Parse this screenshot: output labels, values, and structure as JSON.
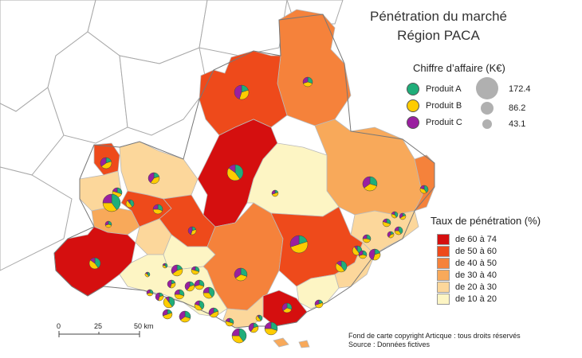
{
  "title": {
    "line1": "Pénétration du marché",
    "line2": "Région PACA"
  },
  "ca_legend": {
    "title": "Chiffre d’affaire (K€)",
    "products": [
      {
        "label": "Produit A",
        "color": "#1fae7a"
      },
      {
        "label": "Produit B",
        "color": "#ffcc00"
      },
      {
        "label": "Produit C",
        "color": "#9a1fa0"
      }
    ],
    "sizes": [
      "172.4",
      "86.2",
      "43.1"
    ]
  },
  "rate_legend": {
    "title": "Taux de pénétration (%)",
    "classes": [
      {
        "label": "de 60 à 74",
        "color": "#d50f0f"
      },
      {
        "label": "de 50 à 60",
        "color": "#ee4a1b"
      },
      {
        "label": "de 40 à 50",
        "color": "#f5823b"
      },
      {
        "label": "de 30 à 40",
        "color": "#f8a95a"
      },
      {
        "label": "de 20 à 30",
        "color": "#fcd79b"
      },
      {
        "label": "de 10 à 20",
        "color": "#fdf5c4"
      }
    ]
  },
  "scale": {
    "labels": [
      "0",
      "25",
      "50 km"
    ]
  },
  "footer": {
    "copyright": "Fond de carte copyright Articque : tous droits réservés",
    "source": "Source : Données fictives"
  }
}
